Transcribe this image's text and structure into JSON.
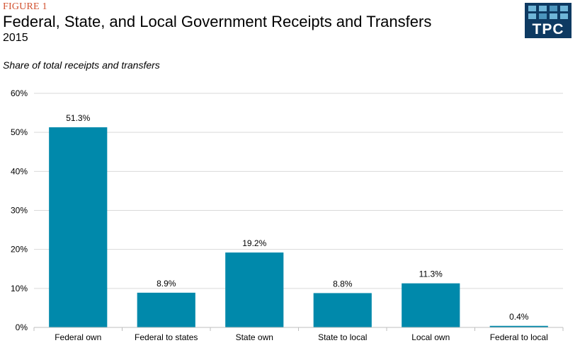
{
  "header": {
    "figure_label": "FIGURE 1",
    "title": "Federal, State, and Local Government Receipts and Transfers",
    "subtitle": "2015"
  },
  "logo": {
    "text": "TPC",
    "color": "#0e3a62"
  },
  "chart_data": {
    "type": "bar",
    "title": "Federal, State, and Local Government Receipts and Transfers",
    "subtitle": "2015",
    "ylabel": "Share of total receipts and transfers",
    "xlabel": "",
    "categories": [
      "Federal own",
      "Federal to states",
      "State own",
      "State to local",
      "Local own",
      "Federal to local"
    ],
    "values": [
      51.3,
      8.9,
      19.2,
      8.8,
      11.3,
      0.4
    ],
    "data_labels": [
      "51.3%",
      "8.9%",
      "19.2%",
      "8.8%",
      "11.3%",
      "0.4%"
    ],
    "ylim": [
      0,
      60
    ],
    "yticks": [
      0,
      10,
      20,
      30,
      40,
      50,
      60
    ],
    "ytick_labels": [
      "0%",
      "10%",
      "20%",
      "30%",
      "40%",
      "50%",
      "60%"
    ],
    "grid": true,
    "bar_color": "#0089ab",
    "grid_color": "#d9d9d9"
  }
}
